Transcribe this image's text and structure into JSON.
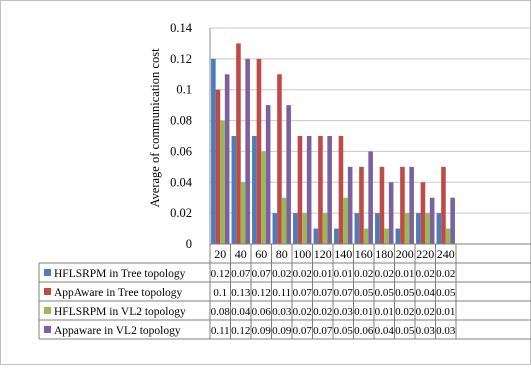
{
  "chart_data": {
    "type": "bar",
    "title": "",
    "xlabel": "",
    "ylabel": "Average of communication cost",
    "ylim": [
      0,
      0.14
    ],
    "y_ticks": [
      "0",
      "0.02",
      "0.04",
      "0.06",
      "0.08",
      "0.1",
      "0.12",
      "0.14"
    ],
    "grid": true,
    "legend": "data-table",
    "categories": [
      "20",
      "40",
      "60",
      "80",
      "100",
      "120",
      "140",
      "160",
      "180",
      "200",
      "220",
      "240"
    ],
    "series": [
      {
        "name": "HFLSRPM in Tree topology",
        "color": "#4a7ebb",
        "values": [
          0.12,
          0.07,
          0.07,
          0.02,
          0.02,
          0.01,
          0.01,
          0.02,
          0.02,
          0.01,
          0.02,
          0.02
        ],
        "labels": [
          "0.12",
          "0.07",
          "0.07",
          "0.02",
          "0.02",
          "0.01",
          "0.01",
          "0.02",
          "0.02",
          "0.01",
          "0.02",
          "0.02"
        ]
      },
      {
        "name": "AppAware in Tree topology",
        "color": "#be4b48",
        "values": [
          0.1,
          0.13,
          0.12,
          0.11,
          0.07,
          0.07,
          0.07,
          0.05,
          0.05,
          0.05,
          0.04,
          0.05
        ],
        "labels": [
          "0.1",
          "0.13",
          "0.12",
          "0.11",
          "0.07",
          "0.07",
          "0.07",
          "0.05",
          "0.05",
          "0.05",
          "0.04",
          "0.05"
        ]
      },
      {
        "name": "HFLSRPM in VL2 topology",
        "color": "#98b954",
        "values": [
          0.08,
          0.04,
          0.06,
          0.03,
          0.02,
          0.02,
          0.03,
          0.01,
          0.01,
          0.02,
          0.02,
          0.01
        ],
        "labels": [
          "0.08",
          "0.04",
          "0.06",
          "0.03",
          "0.02",
          "0.02",
          "0.03",
          "0.01",
          "0.01",
          "0.02",
          "0.02",
          "0.01"
        ]
      },
      {
        "name": "Appaware in VL2 topology",
        "color": "#7d60a0",
        "values": [
          0.11,
          0.12,
          0.09,
          0.09,
          0.07,
          0.07,
          0.05,
          0.06,
          0.04,
          0.05,
          0.03,
          0.03
        ],
        "labels": [
          "0.11",
          "0.12",
          "0.09",
          "0.09",
          "0.07",
          "0.07",
          "0.05",
          "0.06",
          "0.04",
          "0.05",
          "0.03",
          "0.03"
        ]
      }
    ]
  }
}
